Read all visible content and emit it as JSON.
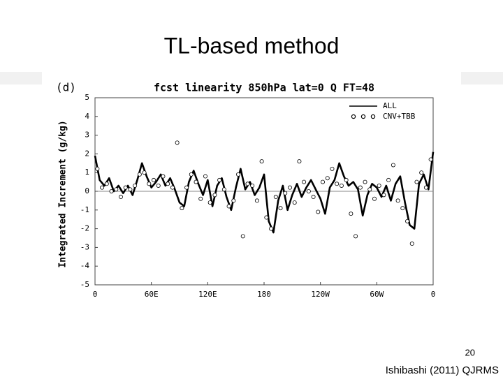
{
  "slide_title": "TL-based method",
  "page_number": "20",
  "citation": "Ishibashi (2011) QJRMS",
  "chart_data": {
    "type": "line",
    "panel_label": "(d)",
    "title": "fcst linearity 850hPa lat=0 Q FT=48",
    "ylabel": "Integrated Increment (g/kg)",
    "xlim": [
      0,
      360
    ],
    "xticks": [
      0,
      {
        "value": 60,
        "label": "60E"
      },
      {
        "value": 120,
        "label": "120E"
      },
      180,
      {
        "value": 240,
        "label": "120W"
      },
      {
        "value": 300,
        "label": "60W"
      },
      {
        "value": 360,
        "label": "0"
      }
    ],
    "ylim": [
      -5,
      5
    ],
    "yticks": [
      -5,
      -4,
      -3,
      -2,
      -1,
      0,
      1,
      2,
      3,
      4,
      5
    ],
    "legend": "upper right",
    "series": [
      {
        "name": "ALL",
        "type": "line",
        "color": "#000000",
        "x": [
          0,
          5,
          10,
          15,
          20,
          25,
          30,
          35,
          40,
          45,
          50,
          55,
          60,
          65,
          70,
          75,
          80,
          85,
          90,
          95,
          100,
          105,
          110,
          115,
          120,
          125,
          130,
          135,
          140,
          145,
          150,
          155,
          160,
          165,
          170,
          175,
          180,
          185,
          190,
          195,
          200,
          205,
          210,
          215,
          220,
          225,
          230,
          235,
          240,
          245,
          250,
          255,
          260,
          265,
          270,
          275,
          280,
          285,
          290,
          295,
          300,
          305,
          310,
          315,
          320,
          325,
          330,
          335,
          340,
          345,
          350,
          355,
          360
        ],
        "values": [
          1.9,
          0.6,
          0.3,
          0.7,
          0.0,
          0.3,
          -0.1,
          0.3,
          -0.2,
          0.6,
          1.5,
          0.8,
          0.2,
          0.5,
          0.9,
          0.3,
          0.7,
          0.1,
          -0.6,
          -0.8,
          0.5,
          1.1,
          0.4,
          -0.2,
          0.6,
          -0.8,
          0.3,
          0.7,
          -0.3,
          -1.0,
          0.2,
          1.2,
          0.1,
          0.5,
          -0.2,
          0.2,
          0.9,
          -1.6,
          -2.2,
          -0.5,
          0.3,
          -1.0,
          -0.2,
          0.4,
          -0.3,
          0.2,
          0.6,
          0.1,
          -0.4,
          -1.2,
          0.2,
          0.6,
          1.5,
          0.8,
          0.3,
          0.5,
          0.1,
          -1.3,
          -0.2,
          0.4,
          0.2,
          -0.3,
          0.3,
          -0.5,
          0.4,
          0.8,
          -0.6,
          -1.8,
          -2.0,
          0.4,
          0.9,
          0.1,
          2.1
        ]
      },
      {
        "name": "CNV+TBB",
        "type": "scatter",
        "color": "#000000",
        "x": [
          2.5,
          7.5,
          12.5,
          17.5,
          22.5,
          27.5,
          32.5,
          37.5,
          42.5,
          47.5,
          52.5,
          57.5,
          62.5,
          67.5,
          72.5,
          77.5,
          82.5,
          87.5,
          92.5,
          97.5,
          102.5,
          107.5,
          112.5,
          117.5,
          122.5,
          127.5,
          132.5,
          137.5,
          142.5,
          147.5,
          152.5,
          157.5,
          162.5,
          167.5,
          172.5,
          177.5,
          182.5,
          187.5,
          192.5,
          197.5,
          202.5,
          207.5,
          212.5,
          217.5,
          222.5,
          227.5,
          232.5,
          237.5,
          242.5,
          247.5,
          252.5,
          257.5,
          262.5,
          267.5,
          272.5,
          277.5,
          282.5,
          287.5,
          292.5,
          297.5,
          302.5,
          307.5,
          312.5,
          317.5,
          322.5,
          327.5,
          332.5,
          337.5,
          342.5,
          347.5,
          352.5,
          357.5
        ],
        "values": [
          1.2,
          0.2,
          0.4,
          0.0,
          0.1,
          -0.3,
          0.2,
          0.1,
          0.3,
          0.9,
          1.0,
          0.4,
          0.6,
          0.3,
          0.8,
          0.4,
          0.2,
          2.6,
          -0.9,
          0.2,
          0.9,
          0.5,
          -0.4,
          0.8,
          -0.6,
          -0.2,
          0.6,
          0.1,
          -0.8,
          -0.5,
          0.9,
          -2.4,
          0.4,
          0.3,
          -0.5,
          1.6,
          -1.4,
          -2.0,
          -0.3,
          -0.9,
          -0.1,
          0.2,
          -0.6,
          1.6,
          0.5,
          0.0,
          -0.3,
          -1.1,
          0.5,
          0.7,
          1.2,
          0.4,
          0.3,
          0.6,
          -1.2,
          -2.4,
          0.2,
          0.5,
          0.1,
          -0.4,
          0.3,
          -0.2,
          0.6,
          1.4,
          -0.5,
          -0.9,
          -1.6,
          -2.8,
          0.5,
          1.0,
          0.2,
          1.7
        ]
      }
    ]
  }
}
